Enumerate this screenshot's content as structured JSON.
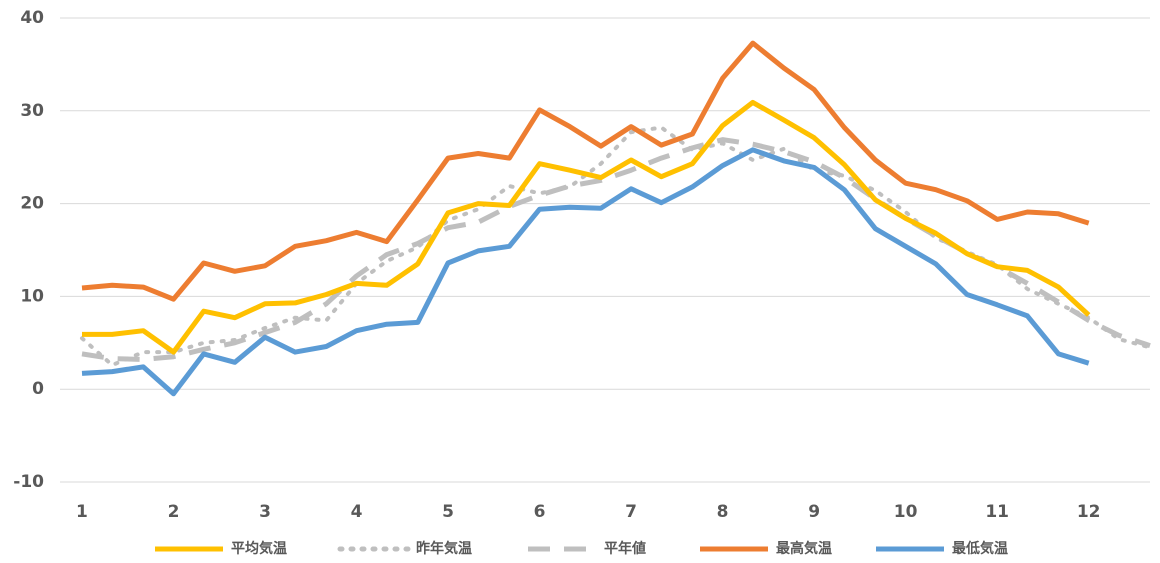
{
  "chart_data": {
    "type": "line",
    "x": [
      1,
      1.33,
      1.67,
      2,
      2.33,
      2.67,
      3,
      3.33,
      3.67,
      4,
      4.33,
      4.67,
      5,
      5.33,
      5.67,
      6,
      6.33,
      6.67,
      7,
      7.33,
      7.67,
      8,
      8.33,
      8.67,
      9,
      9.33,
      9.67,
      10,
      10.33,
      10.67,
      11,
      11.33,
      11.67,
      12,
      12.33,
      12.67
    ],
    "xlim": [
      0.76,
      12.67
    ],
    "xticks": [
      1,
      2,
      3,
      4,
      5,
      6,
      7,
      8,
      9,
      10,
      11,
      12
    ],
    "ylim": [
      -10,
      40
    ],
    "yticks": [
      -10,
      0,
      10,
      20,
      30,
      40
    ],
    "grid": true,
    "legend": "bottom",
    "series": [
      {
        "name": "平均気温",
        "color": "#ffc000",
        "dash": "solid",
        "values": [
          5.9,
          5.9,
          6.3,
          4.0,
          8.4,
          7.7,
          9.2,
          9.3,
          10.2,
          11.4,
          11.2,
          13.5,
          19.0,
          20.0,
          19.8,
          24.3,
          23.6,
          22.8,
          24.7,
          22.9,
          24.3,
          28.4,
          30.9,
          29.0,
          27.1,
          24.2,
          20.4,
          18.4,
          16.8,
          14.6,
          13.2,
          12.8,
          11.0,
          8.0,
          null,
          null
        ]
      },
      {
        "name": "昨年気温",
        "color": "#bfbfbf",
        "dash": "dotted",
        "values": [
          5.5,
          2.6,
          4.0,
          4.0,
          5.0,
          5.3,
          6.6,
          7.7,
          7.4,
          11.4,
          13.8,
          15.3,
          18.2,
          19.4,
          21.9,
          21.1,
          21.8,
          24.3,
          27.7,
          28.2,
          25.8,
          26.5,
          24.7,
          25.9,
          23.6,
          23.0,
          21.4,
          19.1,
          16.3,
          14.8,
          13.4,
          10.8,
          9.2,
          7.7,
          5.4,
          4.5
        ]
      },
      {
        "name": "平年値",
        "color": "#bfbfbf",
        "dash": "dashed",
        "values": [
          3.8,
          3.3,
          3.2,
          3.5,
          4.3,
          5.0,
          6.1,
          7.2,
          9.2,
          12.2,
          14.5,
          15.7,
          17.4,
          18.0,
          19.7,
          20.9,
          21.9,
          22.5,
          23.6,
          24.9,
          26.0,
          26.9,
          26.4,
          25.6,
          24.5,
          22.8,
          20.5,
          18.4,
          16.5,
          14.7,
          13.2,
          11.4,
          9.4,
          7.4,
          5.8,
          4.7
        ]
      },
      {
        "name": "最高気温",
        "color": "#ed7d31",
        "dash": "solid",
        "values": [
          10.9,
          11.2,
          11.0,
          9.7,
          13.6,
          12.7,
          13.3,
          15.4,
          16.0,
          16.9,
          15.9,
          20.4,
          24.9,
          25.4,
          24.9,
          30.1,
          28.3,
          26.2,
          28.3,
          26.3,
          27.5,
          33.5,
          37.3,
          34.6,
          32.3,
          28.2,
          24.7,
          22.2,
          21.5,
          20.3,
          18.3,
          19.1,
          18.9,
          17.9,
          null,
          null
        ]
      },
      {
        "name": "最低気温",
        "color": "#5b9bd5",
        "dash": "solid",
        "values": [
          1.7,
          1.9,
          2.4,
          -0.5,
          3.8,
          2.9,
          5.6,
          4.0,
          4.6,
          6.3,
          7.0,
          7.2,
          13.6,
          14.9,
          15.4,
          19.4,
          19.6,
          19.5,
          21.6,
          20.1,
          21.8,
          24.1,
          25.8,
          24.6,
          23.9,
          21.5,
          17.3,
          15.4,
          13.5,
          10.2,
          9.1,
          7.9,
          3.8,
          2.8,
          null,
          null
        ]
      }
    ]
  }
}
